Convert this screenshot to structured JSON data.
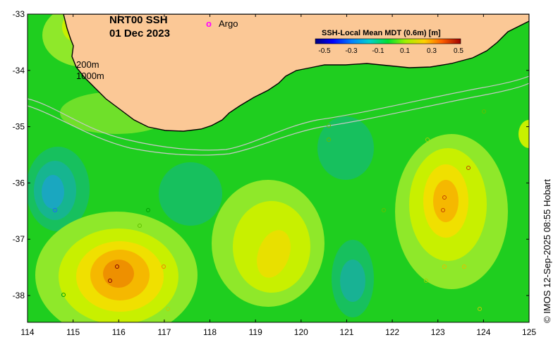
{
  "title": {
    "product": "NRT00 SSH",
    "date": "01 Dec 2023"
  },
  "legend": {
    "argo_symbol": "o",
    "argo_label": "Argo",
    "argo_color": "#ff00ff"
  },
  "isobaths": {
    "shallow": "200m",
    "deep": "1000m"
  },
  "colorbar": {
    "title": "SSH-Local Mean MDT (0.6m) [m]",
    "ticks": [
      "-0.5",
      "-0.3",
      "-0.1",
      "0.1",
      "0.3",
      "0.5"
    ]
  },
  "axes": {
    "x_ticks": [
      "114",
      "115",
      "116",
      "117",
      "118",
      "119",
      "120",
      "121",
      "122",
      "123",
      "124",
      "125"
    ],
    "y_ticks": [
      "-33",
      "-34",
      "-35",
      "-36",
      "-37",
      "-38"
    ]
  },
  "credit": "© IMOS 12-Sep-2025 08:55 Hobart",
  "colors": {
    "land": "#fbc896",
    "base_field": "#1fce1f",
    "coast_line": "#000000",
    "isobath_line": "#c8c8c8"
  }
}
